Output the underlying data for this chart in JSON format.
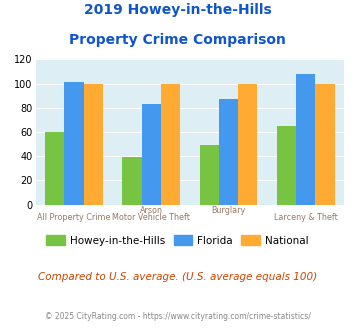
{
  "title_line1": "2019 Howey-in-the-Hills",
  "title_line2": "Property Crime Comparison",
  "howey": [
    60,
    39,
    49,
    65
  ],
  "florida": [
    101,
    83,
    87,
    108
  ],
  "national": [
    100,
    100,
    100,
    100
  ],
  "howey_color": "#76c442",
  "florida_color": "#4499ee",
  "national_color": "#ffaa33",
  "bg_color": "#ddeef5",
  "ylim": [
    0,
    120
  ],
  "yticks": [
    0,
    20,
    40,
    60,
    80,
    100,
    120
  ],
  "title_color": "#1155cc",
  "legend_labels": [
    "Howey-in-the-Hills",
    "Florida",
    "National"
  ],
  "note_text": "Compared to U.S. average. (U.S. average equals 100)",
  "note_color": "#cc4400",
  "credit_text": "© 2025 CityRating.com - https://www.cityrating.com/crime-statistics/",
  "credit_color": "#888888",
  "label_color": "#997766",
  "bottom_labels": [
    "All Property Crime",
    "Motor Vehicle Theft",
    "",
    "Larceny & Theft"
  ],
  "top_labels": [
    "",
    "Arson",
    "Burglary",
    ""
  ]
}
